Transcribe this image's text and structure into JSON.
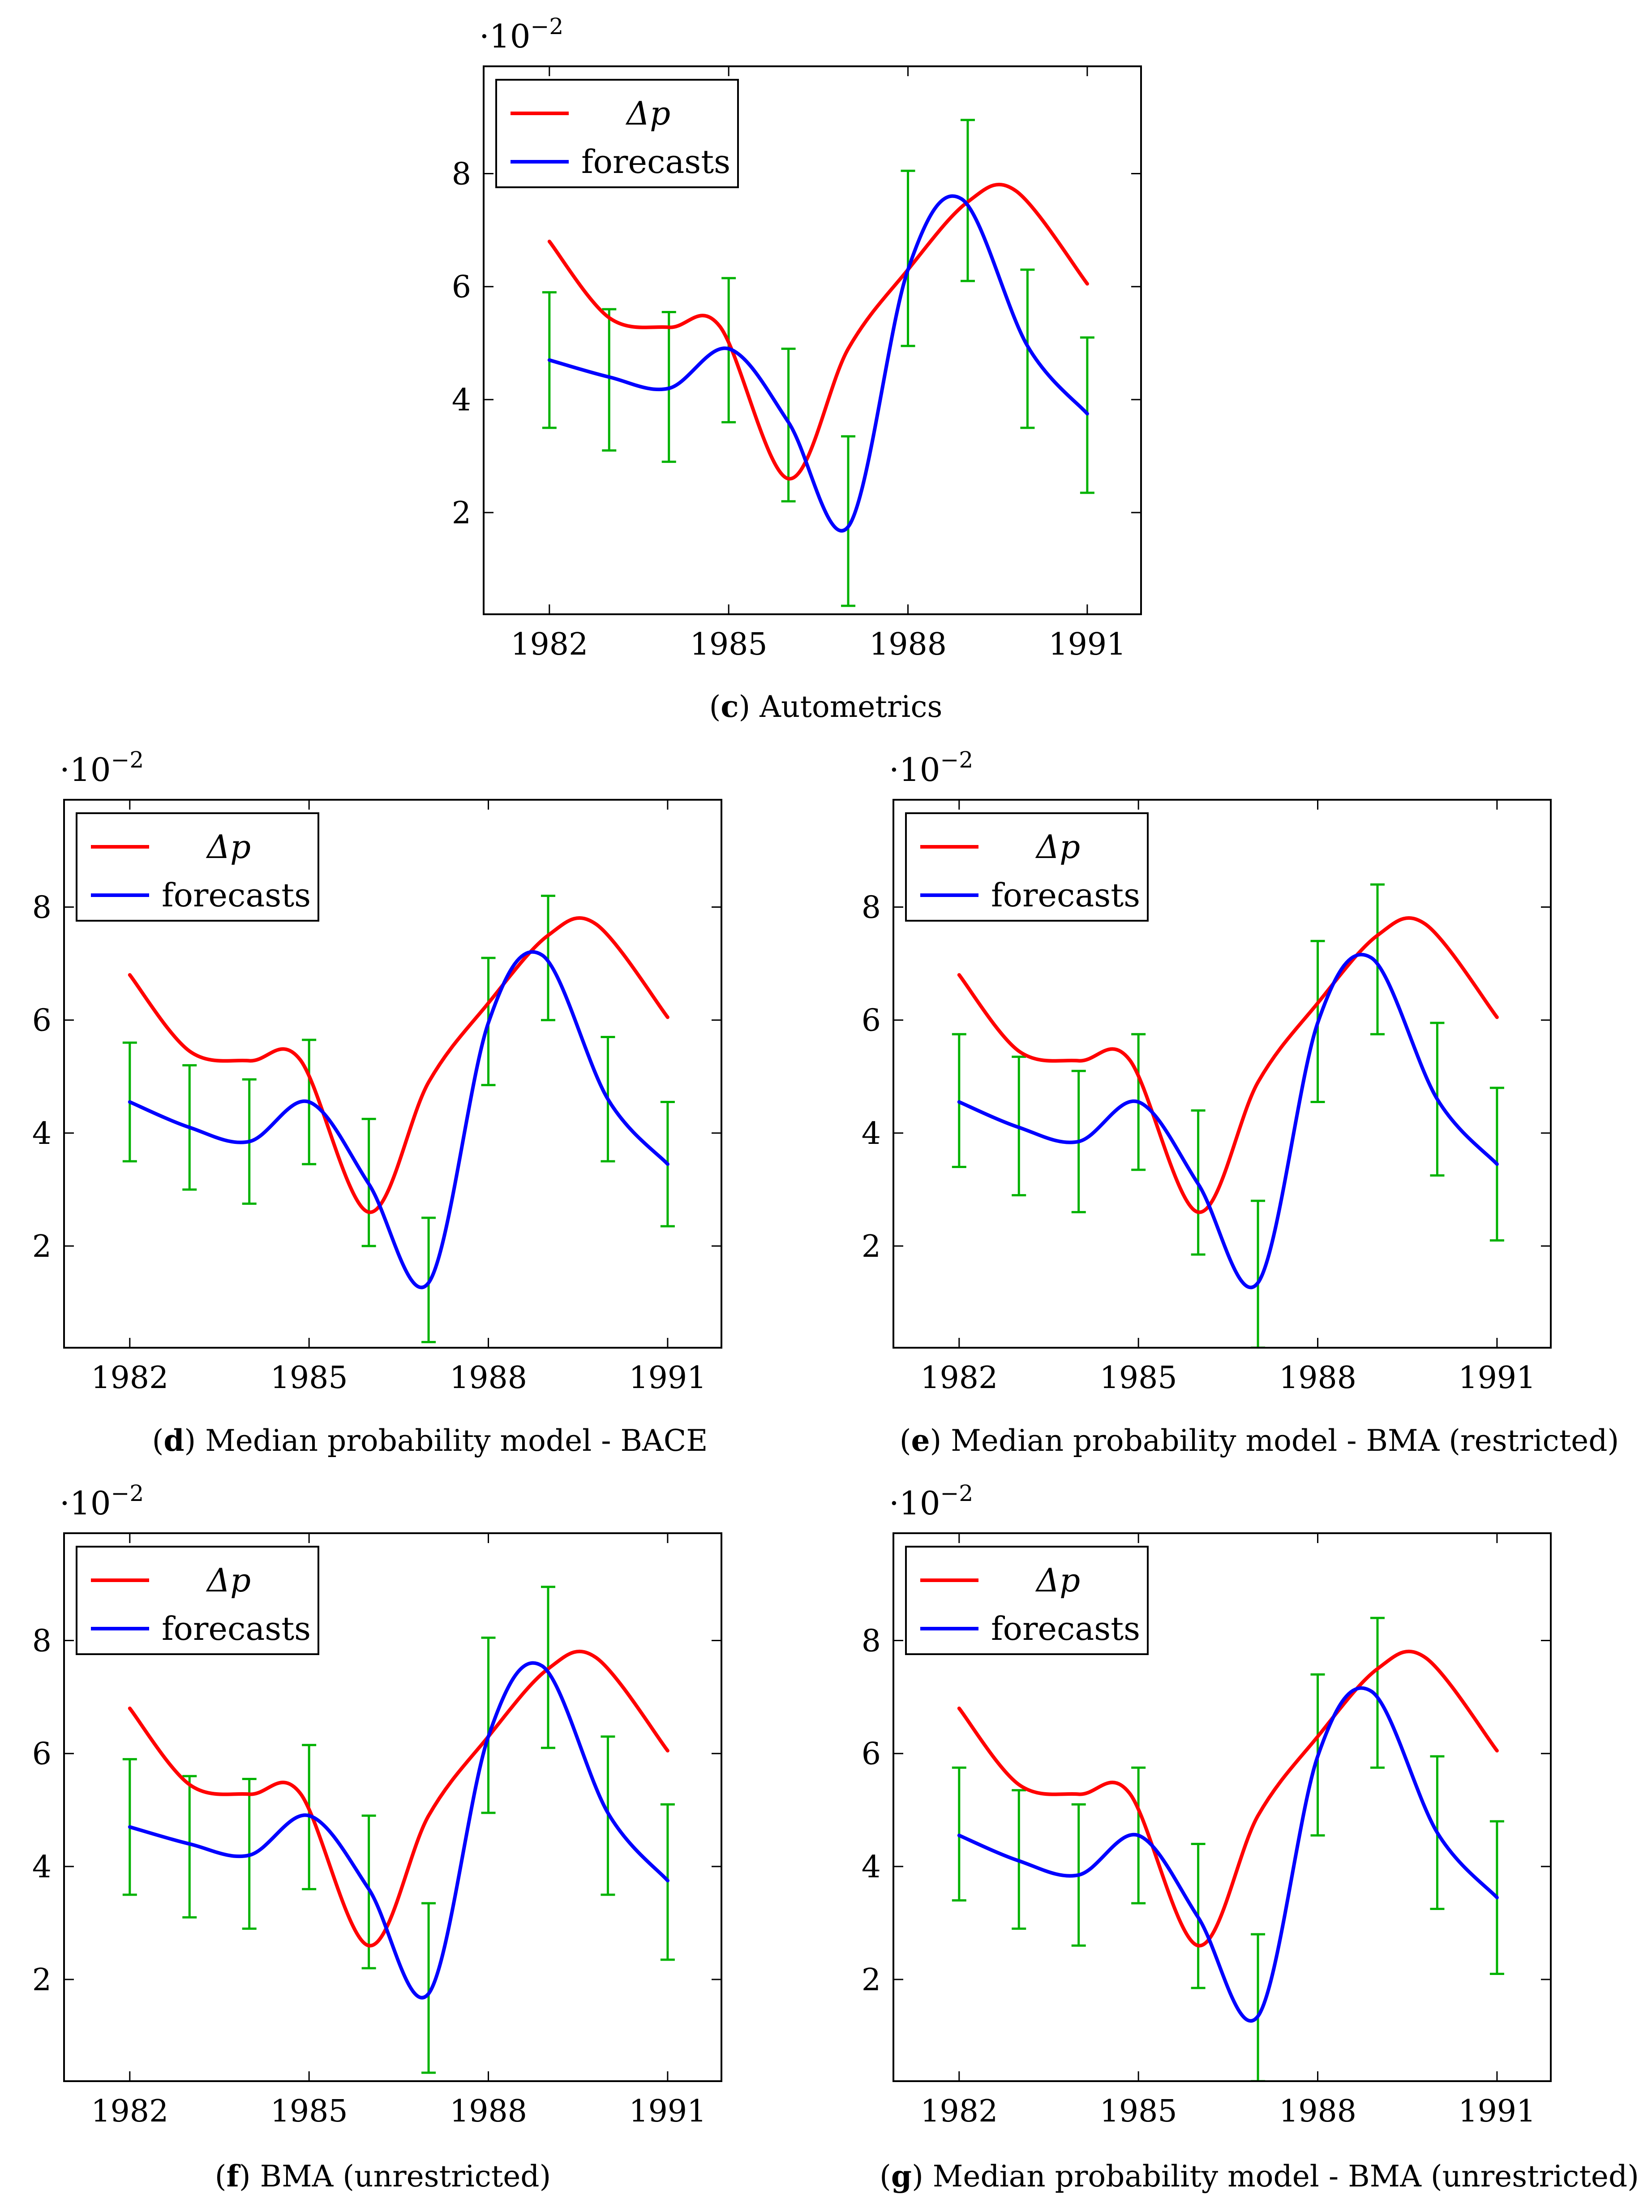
{
  "chart_data": [
    {
      "id": "c",
      "type": "line",
      "caption_letter": "c",
      "caption_text": "Autometrics",
      "scale_base": "·10",
      "scale_exp": "−2",
      "x": [
        1982,
        1983,
        1984,
        1985,
        1986,
        1987,
        1988,
        1989,
        1990,
        1991
      ],
      "xticks": [
        "1982",
        "1985",
        "1988",
        "1991"
      ],
      "xtick_values": [
        1982,
        1985,
        1988,
        1991
      ],
      "yticks": [
        "2",
        "4",
        "6",
        "8"
      ],
      "ytick_values": [
        2,
        4,
        6,
        8
      ],
      "xlim": [
        1980.9,
        1991.9
      ],
      "ylim": [
        0.2,
        9.9
      ],
      "series": [
        {
          "name": "Δp",
          "color": "#ff0000",
          "x": [
            1982,
            1983,
            1984,
            1984.85,
            1986,
            1987,
            1988,
            1989.0,
            1989.8,
            1991
          ],
          "values": [
            6.8,
            5.45,
            5.28,
            5.3,
            2.6,
            4.9,
            6.3,
            7.5,
            7.7,
            6.05
          ]
        },
        {
          "name": "forecasts",
          "color": "#0000ff",
          "x": [
            1982,
            1983,
            1984,
            1985,
            1986,
            1987,
            1988,
            1988.9,
            1990,
            1991
          ],
          "values": [
            4.7,
            4.4,
            4.2,
            4.9,
            3.6,
            1.75,
            6.3,
            7.55,
            4.95,
            3.75
          ]
        }
      ],
      "error_bars": {
        "color": "#00b200",
        "x": [
          1982,
          1983,
          1984,
          1985,
          1986,
          1987,
          1988,
          1989,
          1990,
          1991
        ],
        "low": [
          3.5,
          3.1,
          2.9,
          3.6,
          2.2,
          0.35,
          4.95,
          6.1,
          3.5,
          2.35
        ],
        "high": [
          5.9,
          5.6,
          5.55,
          6.15,
          4.9,
          3.35,
          8.05,
          8.95,
          6.3,
          5.1
        ]
      }
    },
    {
      "id": "d",
      "type": "line",
      "caption_letter": "d",
      "caption_text": "Median probability model - BACE",
      "scale_base": "·10",
      "scale_exp": "−2",
      "x": [
        1982,
        1983,
        1984,
        1985,
        1986,
        1987,
        1988,
        1989,
        1990,
        1991
      ],
      "xticks": [
        "1982",
        "1985",
        "1988",
        "1991"
      ],
      "xtick_values": [
        1982,
        1985,
        1988,
        1991
      ],
      "yticks": [
        "2",
        "4",
        "6",
        "8"
      ],
      "ytick_values": [
        2,
        4,
        6,
        8
      ],
      "xlim": [
        1980.9,
        1991.9
      ],
      "ylim": [
        0.2,
        9.9
      ],
      "series": [
        {
          "name": "Δp",
          "color": "#ff0000",
          "x": [
            1982,
            1983,
            1984,
            1984.85,
            1986,
            1987,
            1988,
            1989.0,
            1989.8,
            1991
          ],
          "values": [
            6.8,
            5.45,
            5.28,
            5.3,
            2.6,
            4.9,
            6.3,
            7.5,
            7.7,
            6.05
          ]
        },
        {
          "name": "forecasts",
          "color": "#0000ff",
          "x": [
            1982,
            1983,
            1984,
            1985,
            1986,
            1987,
            1988,
            1988.9,
            1990,
            1991
          ],
          "values": [
            4.55,
            4.1,
            3.85,
            4.55,
            3.1,
            1.35,
            5.95,
            7.15,
            4.6,
            3.45
          ]
        }
      ],
      "error_bars": {
        "color": "#00b200",
        "x": [
          1982,
          1983,
          1984,
          1985,
          1986,
          1987,
          1988,
          1989,
          1990,
          1991
        ],
        "low": [
          3.5,
          3.0,
          2.75,
          3.45,
          2.0,
          0.3,
          4.85,
          6.0,
          3.5,
          2.35
        ],
        "high": [
          5.6,
          5.2,
          4.95,
          5.65,
          4.25,
          2.5,
          7.1,
          8.2,
          5.7,
          4.55
        ]
      }
    },
    {
      "id": "e",
      "type": "line",
      "caption_letter": "e",
      "caption_text": "Median probability model - BMA (restricted)",
      "scale_base": "·10",
      "scale_exp": "−2",
      "x": [
        1982,
        1983,
        1984,
        1985,
        1986,
        1987,
        1988,
        1989,
        1990,
        1991
      ],
      "xticks": [
        "1982",
        "1985",
        "1988",
        "1991"
      ],
      "xtick_values": [
        1982,
        1985,
        1988,
        1991
      ],
      "yticks": [
        "2",
        "4",
        "6",
        "8"
      ],
      "ytick_values": [
        2,
        4,
        6,
        8
      ],
      "xlim": [
        1980.9,
        1991.9
      ],
      "ylim": [
        0.2,
        9.9
      ],
      "series": [
        {
          "name": "Δp",
          "color": "#ff0000",
          "x": [
            1982,
            1983,
            1984,
            1984.85,
            1986,
            1987,
            1988,
            1989.0,
            1989.8,
            1991
          ],
          "values": [
            6.8,
            5.45,
            5.28,
            5.3,
            2.6,
            4.9,
            6.3,
            7.5,
            7.7,
            6.05
          ]
        },
        {
          "name": "forecasts",
          "color": "#0000ff",
          "x": [
            1982,
            1983,
            1984,
            1985,
            1986,
            1987,
            1988,
            1988.9,
            1990,
            1991
          ],
          "values": [
            4.55,
            4.1,
            3.85,
            4.55,
            3.1,
            1.35,
            5.95,
            7.1,
            4.6,
            3.45
          ]
        }
      ],
      "error_bars": {
        "color": "#00b200",
        "x": [
          1982,
          1983,
          1984,
          1985,
          1986,
          1987,
          1988,
          1989,
          1990,
          1991
        ],
        "low": [
          3.4,
          2.9,
          2.6,
          3.35,
          1.85,
          0.2,
          4.55,
          5.75,
          3.25,
          2.1
        ],
        "high": [
          5.75,
          5.35,
          5.1,
          5.75,
          4.4,
          2.8,
          7.4,
          8.4,
          5.95,
          4.8
        ]
      }
    },
    {
      "id": "f",
      "type": "line",
      "caption_letter": "f",
      "caption_text": "BMA (unrestricted)",
      "scale_base": "·10",
      "scale_exp": "−2",
      "x": [
        1982,
        1983,
        1984,
        1985,
        1986,
        1987,
        1988,
        1989,
        1990,
        1991
      ],
      "xticks": [
        "1982",
        "1985",
        "1988",
        "1991"
      ],
      "xtick_values": [
        1982,
        1985,
        1988,
        1991
      ],
      "yticks": [
        "2",
        "4",
        "6",
        "8"
      ],
      "ytick_values": [
        2,
        4,
        6,
        8
      ],
      "xlim": [
        1980.9,
        1991.9
      ],
      "ylim": [
        0.2,
        9.9
      ],
      "series": [
        {
          "name": "Δp",
          "color": "#ff0000",
          "x": [
            1982,
            1983,
            1984,
            1984.85,
            1986,
            1987,
            1988,
            1989.0,
            1989.8,
            1991
          ],
          "values": [
            6.8,
            5.45,
            5.28,
            5.3,
            2.6,
            4.9,
            6.3,
            7.5,
            7.7,
            6.05
          ]
        },
        {
          "name": "forecasts",
          "color": "#0000ff",
          "x": [
            1982,
            1983,
            1984,
            1985,
            1986,
            1987,
            1988,
            1988.9,
            1990,
            1991
          ],
          "values": [
            4.7,
            4.4,
            4.2,
            4.9,
            3.6,
            1.75,
            6.3,
            7.55,
            4.95,
            3.75
          ]
        }
      ],
      "error_bars": {
        "color": "#00b200",
        "x": [
          1982,
          1983,
          1984,
          1985,
          1986,
          1987,
          1988,
          1989,
          1990,
          1991
        ],
        "low": [
          3.5,
          3.1,
          2.9,
          3.6,
          2.2,
          0.35,
          4.95,
          6.1,
          3.5,
          2.35
        ],
        "high": [
          5.9,
          5.6,
          5.55,
          6.15,
          4.9,
          3.35,
          8.05,
          8.95,
          6.3,
          5.1
        ]
      }
    },
    {
      "id": "g",
      "type": "line",
      "caption_letter": "g",
      "caption_text": "Median probability model - BMA (unrestricted)",
      "scale_base": "·10",
      "scale_exp": "−2",
      "x": [
        1982,
        1983,
        1984,
        1985,
        1986,
        1987,
        1988,
        1989,
        1990,
        1991
      ],
      "xticks": [
        "1982",
        "1985",
        "1988",
        "1991"
      ],
      "xtick_values": [
        1982,
        1985,
        1988,
        1991
      ],
      "yticks": [
        "2",
        "4",
        "6",
        "8"
      ],
      "ytick_values": [
        2,
        4,
        6,
        8
      ],
      "xlim": [
        1980.9,
        1991.9
      ],
      "ylim": [
        0.2,
        9.9
      ],
      "series": [
        {
          "name": "Δp",
          "color": "#ff0000",
          "x": [
            1982,
            1983,
            1984,
            1984.85,
            1986,
            1987,
            1988,
            1989.0,
            1989.8,
            1991
          ],
          "values": [
            6.8,
            5.45,
            5.28,
            5.3,
            2.6,
            4.9,
            6.3,
            7.5,
            7.7,
            6.05
          ]
        },
        {
          "name": "forecasts",
          "color": "#0000ff",
          "x": [
            1982,
            1983,
            1984,
            1985,
            1986,
            1987,
            1988,
            1988.9,
            1990,
            1991
          ],
          "values": [
            4.55,
            4.1,
            3.85,
            4.55,
            3.1,
            1.35,
            5.95,
            7.1,
            4.6,
            3.45
          ]
        }
      ],
      "error_bars": {
        "color": "#00b200",
        "x": [
          1982,
          1983,
          1984,
          1985,
          1986,
          1987,
          1988,
          1989,
          1990,
          1991
        ],
        "low": [
          3.4,
          2.9,
          2.6,
          3.35,
          1.85,
          0.2,
          4.55,
          5.75,
          3.25,
          2.1
        ],
        "high": [
          5.75,
          5.35,
          5.1,
          5.75,
          4.4,
          2.8,
          7.4,
          8.4,
          5.95,
          4.8
        ]
      }
    }
  ]
}
